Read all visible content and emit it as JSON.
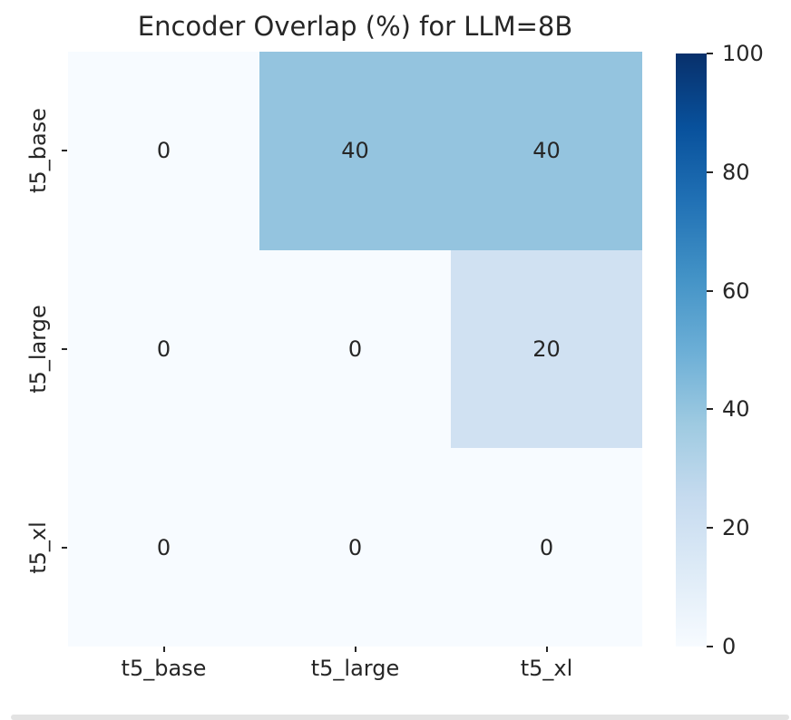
{
  "chart_data": {
    "type": "heatmap",
    "title": "Encoder Overlap (%) for LLM=8B",
    "x_categories": [
      "t5_base",
      "t5_large",
      "t5_xl"
    ],
    "y_categories": [
      "t5_base",
      "t5_large",
      "t5_xl"
    ],
    "values": [
      [
        0,
        40,
        40
      ],
      [
        0,
        0,
        20
      ],
      [
        0,
        0,
        0
      ]
    ],
    "vmin": 0,
    "vmax": 100,
    "colormap": "Blues",
    "colormap_stops": [
      "#f7fbff",
      "#deebf7",
      "#c6dbef",
      "#9ecae1",
      "#6baed6",
      "#4292c6",
      "#2171b5",
      "#08519c",
      "#08306b"
    ],
    "colorbar_ticks": [
      0,
      20,
      40,
      60,
      80,
      100
    ],
    "colorbar_position": "right",
    "grid": false,
    "legend": false
  },
  "colors": {
    "text": "#262626",
    "background": "#ffffff",
    "divider": "#e3e3e3"
  }
}
